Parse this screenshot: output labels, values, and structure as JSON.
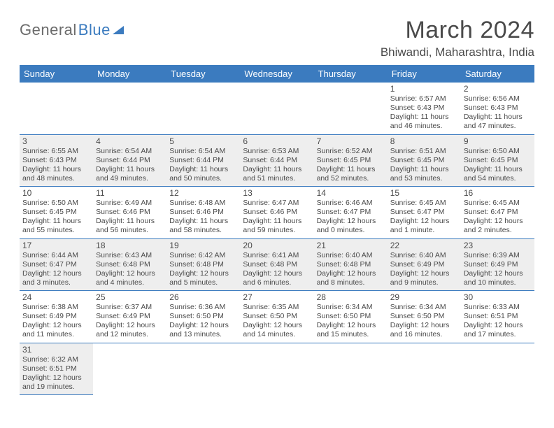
{
  "brand": {
    "part1": "General",
    "part2": "Blue"
  },
  "title": "March 2024",
  "location": "Bhiwandi, Maharashtra, India",
  "colors": {
    "header_bg": "#3b7bbf",
    "header_fg": "#ffffff",
    "cell_border": "#3b7bbf",
    "shaded_bg": "#eeeeee",
    "text": "#4a4a4a"
  },
  "weekdays": [
    "Sunday",
    "Monday",
    "Tuesday",
    "Wednesday",
    "Thursday",
    "Friday",
    "Saturday"
  ],
  "weeks": [
    [
      null,
      null,
      null,
      null,
      null,
      {
        "d": "1",
        "sr": "Sunrise: 6:57 AM",
        "ss": "Sunset: 6:43 PM",
        "dl1": "Daylight: 11 hours",
        "dl2": "and 46 minutes."
      },
      {
        "d": "2",
        "sr": "Sunrise: 6:56 AM",
        "ss": "Sunset: 6:43 PM",
        "dl1": "Daylight: 11 hours",
        "dl2": "and 47 minutes."
      }
    ],
    [
      {
        "d": "3",
        "sr": "Sunrise: 6:55 AM",
        "ss": "Sunset: 6:43 PM",
        "dl1": "Daylight: 11 hours",
        "dl2": "and 48 minutes."
      },
      {
        "d": "4",
        "sr": "Sunrise: 6:54 AM",
        "ss": "Sunset: 6:44 PM",
        "dl1": "Daylight: 11 hours",
        "dl2": "and 49 minutes."
      },
      {
        "d": "5",
        "sr": "Sunrise: 6:54 AM",
        "ss": "Sunset: 6:44 PM",
        "dl1": "Daylight: 11 hours",
        "dl2": "and 50 minutes."
      },
      {
        "d": "6",
        "sr": "Sunrise: 6:53 AM",
        "ss": "Sunset: 6:44 PM",
        "dl1": "Daylight: 11 hours",
        "dl2": "and 51 minutes."
      },
      {
        "d": "7",
        "sr": "Sunrise: 6:52 AM",
        "ss": "Sunset: 6:45 PM",
        "dl1": "Daylight: 11 hours",
        "dl2": "and 52 minutes."
      },
      {
        "d": "8",
        "sr": "Sunrise: 6:51 AM",
        "ss": "Sunset: 6:45 PM",
        "dl1": "Daylight: 11 hours",
        "dl2": "and 53 minutes."
      },
      {
        "d": "9",
        "sr": "Sunrise: 6:50 AM",
        "ss": "Sunset: 6:45 PM",
        "dl1": "Daylight: 11 hours",
        "dl2": "and 54 minutes."
      }
    ],
    [
      {
        "d": "10",
        "sr": "Sunrise: 6:50 AM",
        "ss": "Sunset: 6:45 PM",
        "dl1": "Daylight: 11 hours",
        "dl2": "and 55 minutes."
      },
      {
        "d": "11",
        "sr": "Sunrise: 6:49 AM",
        "ss": "Sunset: 6:46 PM",
        "dl1": "Daylight: 11 hours",
        "dl2": "and 56 minutes."
      },
      {
        "d": "12",
        "sr": "Sunrise: 6:48 AM",
        "ss": "Sunset: 6:46 PM",
        "dl1": "Daylight: 11 hours",
        "dl2": "and 58 minutes."
      },
      {
        "d": "13",
        "sr": "Sunrise: 6:47 AM",
        "ss": "Sunset: 6:46 PM",
        "dl1": "Daylight: 11 hours",
        "dl2": "and 59 minutes."
      },
      {
        "d": "14",
        "sr": "Sunrise: 6:46 AM",
        "ss": "Sunset: 6:47 PM",
        "dl1": "Daylight: 12 hours",
        "dl2": "and 0 minutes."
      },
      {
        "d": "15",
        "sr": "Sunrise: 6:45 AM",
        "ss": "Sunset: 6:47 PM",
        "dl1": "Daylight: 12 hours",
        "dl2": "and 1 minute."
      },
      {
        "d": "16",
        "sr": "Sunrise: 6:45 AM",
        "ss": "Sunset: 6:47 PM",
        "dl1": "Daylight: 12 hours",
        "dl2": "and 2 minutes."
      }
    ],
    [
      {
        "d": "17",
        "sr": "Sunrise: 6:44 AM",
        "ss": "Sunset: 6:47 PM",
        "dl1": "Daylight: 12 hours",
        "dl2": "and 3 minutes."
      },
      {
        "d": "18",
        "sr": "Sunrise: 6:43 AM",
        "ss": "Sunset: 6:48 PM",
        "dl1": "Daylight: 12 hours",
        "dl2": "and 4 minutes."
      },
      {
        "d": "19",
        "sr": "Sunrise: 6:42 AM",
        "ss": "Sunset: 6:48 PM",
        "dl1": "Daylight: 12 hours",
        "dl2": "and 5 minutes."
      },
      {
        "d": "20",
        "sr": "Sunrise: 6:41 AM",
        "ss": "Sunset: 6:48 PM",
        "dl1": "Daylight: 12 hours",
        "dl2": "and 6 minutes."
      },
      {
        "d": "21",
        "sr": "Sunrise: 6:40 AM",
        "ss": "Sunset: 6:48 PM",
        "dl1": "Daylight: 12 hours",
        "dl2": "and 8 minutes."
      },
      {
        "d": "22",
        "sr": "Sunrise: 6:40 AM",
        "ss": "Sunset: 6:49 PM",
        "dl1": "Daylight: 12 hours",
        "dl2": "and 9 minutes."
      },
      {
        "d": "23",
        "sr": "Sunrise: 6:39 AM",
        "ss": "Sunset: 6:49 PM",
        "dl1": "Daylight: 12 hours",
        "dl2": "and 10 minutes."
      }
    ],
    [
      {
        "d": "24",
        "sr": "Sunrise: 6:38 AM",
        "ss": "Sunset: 6:49 PM",
        "dl1": "Daylight: 12 hours",
        "dl2": "and 11 minutes."
      },
      {
        "d": "25",
        "sr": "Sunrise: 6:37 AM",
        "ss": "Sunset: 6:49 PM",
        "dl1": "Daylight: 12 hours",
        "dl2": "and 12 minutes."
      },
      {
        "d": "26",
        "sr": "Sunrise: 6:36 AM",
        "ss": "Sunset: 6:50 PM",
        "dl1": "Daylight: 12 hours",
        "dl2": "and 13 minutes."
      },
      {
        "d": "27",
        "sr": "Sunrise: 6:35 AM",
        "ss": "Sunset: 6:50 PM",
        "dl1": "Daylight: 12 hours",
        "dl2": "and 14 minutes."
      },
      {
        "d": "28",
        "sr": "Sunrise: 6:34 AM",
        "ss": "Sunset: 6:50 PM",
        "dl1": "Daylight: 12 hours",
        "dl2": "and 15 minutes."
      },
      {
        "d": "29",
        "sr": "Sunrise: 6:34 AM",
        "ss": "Sunset: 6:50 PM",
        "dl1": "Daylight: 12 hours",
        "dl2": "and 16 minutes."
      },
      {
        "d": "30",
        "sr": "Sunrise: 6:33 AM",
        "ss": "Sunset: 6:51 PM",
        "dl1": "Daylight: 12 hours",
        "dl2": "and 17 minutes."
      }
    ],
    [
      {
        "d": "31",
        "sr": "Sunrise: 6:32 AM",
        "ss": "Sunset: 6:51 PM",
        "dl1": "Daylight: 12 hours",
        "dl2": "and 19 minutes."
      },
      null,
      null,
      null,
      null,
      null,
      null
    ]
  ]
}
